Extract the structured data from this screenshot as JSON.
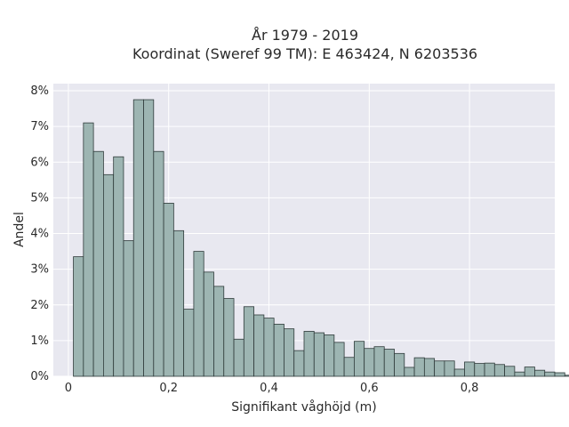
{
  "chart_data": {
    "type": "bar",
    "title_line1": "År 1979 - 2019",
    "title_line2": "Koordinat (Sweref 99 TM): E 463424, N 6203536",
    "xlabel": "Signifikant våghöjd (m)",
    "ylabel": "Andel",
    "xlim": [
      -0.03,
      0.97
    ],
    "ylim": [
      0,
      8.2
    ],
    "x_ticks": [
      {
        "value": 0,
        "label": "0"
      },
      {
        "value": 0.2,
        "label": "0,2"
      },
      {
        "value": 0.4,
        "label": "0,4"
      },
      {
        "value": 0.6,
        "label": "0,6"
      },
      {
        "value": 0.8,
        "label": "0,8"
      }
    ],
    "y_ticks": [
      {
        "value": 0,
        "label": "0%"
      },
      {
        "value": 1,
        "label": "1%"
      },
      {
        "value": 2,
        "label": "2%"
      },
      {
        "value": 3,
        "label": "3%"
      },
      {
        "value": 4,
        "label": "4%"
      },
      {
        "value": 5,
        "label": "5%"
      },
      {
        "value": 6,
        "label": "6%"
      },
      {
        "value": 7,
        "label": "7%"
      },
      {
        "value": 8,
        "label": "8%"
      }
    ],
    "bin_start": 0.01,
    "bin_width": 0.02,
    "values": [
      3.35,
      7.1,
      6.3,
      5.65,
      6.15,
      3.8,
      7.75,
      7.75,
      6.3,
      4.85,
      4.08,
      1.88,
      3.5,
      2.92,
      2.52,
      2.18,
      1.04,
      1.95,
      1.72,
      1.63,
      1.46,
      1.33,
      0.72,
      1.26,
      1.22,
      1.16,
      0.95,
      0.53,
      0.98,
      0.78,
      0.83,
      0.76,
      0.64,
      0.25,
      0.52,
      0.5,
      0.43,
      0.43,
      0.2,
      0.4,
      0.36,
      0.37,
      0.33,
      0.28,
      0.12,
      0.26,
      0.17,
      0.12,
      0.1,
      0.03
    ],
    "colors": {
      "bar_fill": "#9db5b2",
      "bar_stroke": "#2f3b3a",
      "plot_background": "#e8e8f0",
      "grid": "#ffffff"
    },
    "grid": true
  }
}
